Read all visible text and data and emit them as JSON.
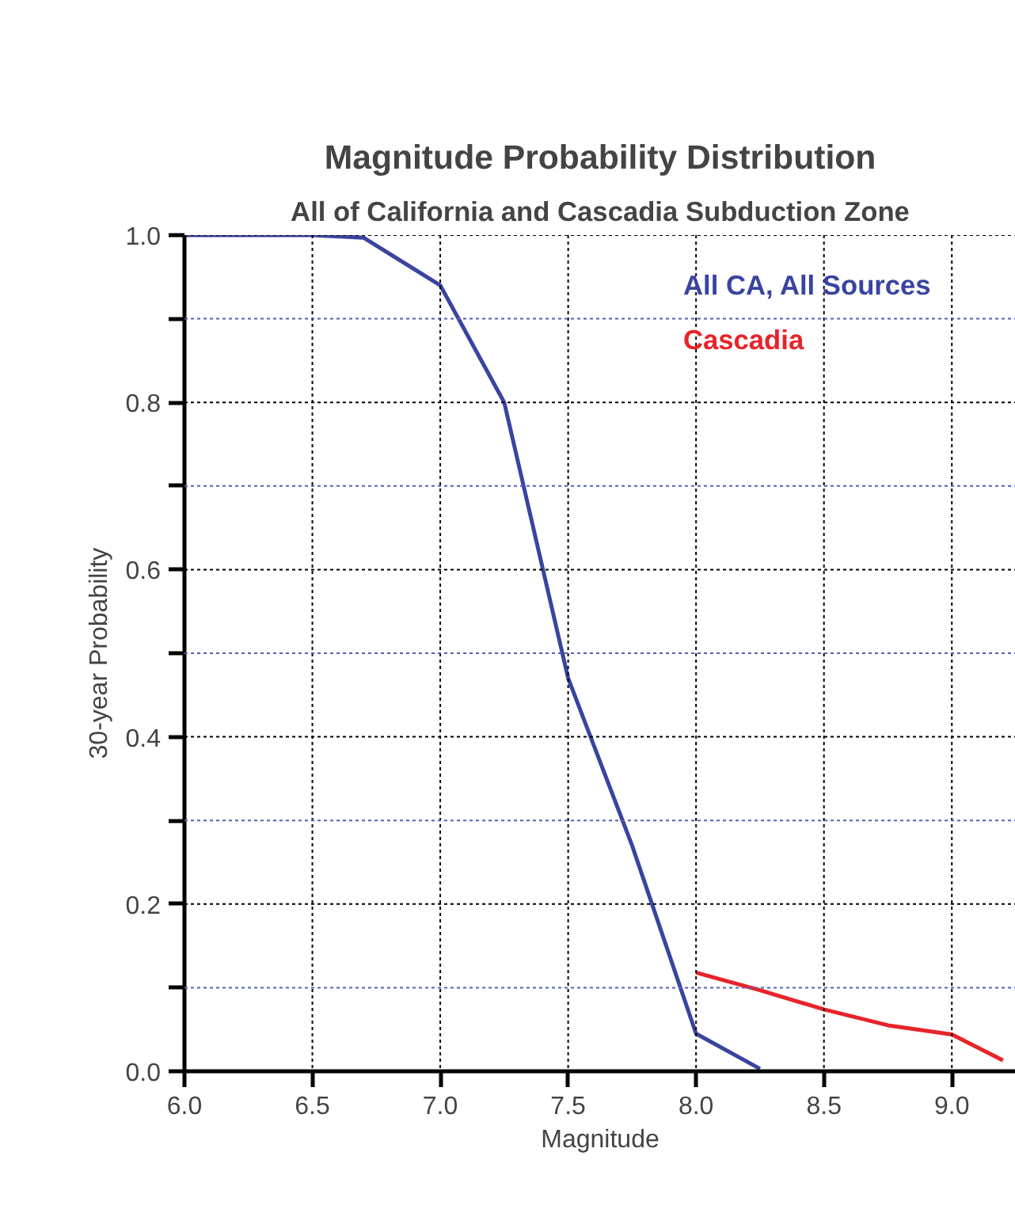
{
  "chart_data": {
    "type": "line",
    "title": "Magnitude Probability Distribution",
    "subtitle": "All of California and Cascadia Subduction Zone",
    "xlabel": "Magnitude",
    "ylabel": "30-year Probability",
    "xlim": [
      6.0,
      9.25
    ],
    "ylim": [
      0.0,
      1.0
    ],
    "xticks": [
      {
        "value": 6.0,
        "label": "6.0"
      },
      {
        "value": 6.5,
        "label": "6.5"
      },
      {
        "value": 7.0,
        "label": "7.0"
      },
      {
        "value": 7.5,
        "label": "7.5"
      },
      {
        "value": 8.0,
        "label": "8.0"
      },
      {
        "value": 8.5,
        "label": "8.5"
      },
      {
        "value": 9.0,
        "label": "9.0"
      }
    ],
    "yticks": [
      {
        "value": 0.0,
        "label": "0.0"
      },
      {
        "value": 0.1,
        "label": null
      },
      {
        "value": 0.2,
        "label": "0.2"
      },
      {
        "value": 0.3,
        "label": null
      },
      {
        "value": 0.4,
        "label": "0.4"
      },
      {
        "value": 0.5,
        "label": null
      },
      {
        "value": 0.6,
        "label": "0.6"
      },
      {
        "value": 0.7,
        "label": null
      },
      {
        "value": 0.8,
        "label": "0.8"
      },
      {
        "value": 0.9,
        "label": null
      },
      {
        "value": 1.0,
        "label": "1.0"
      }
    ],
    "grid": true,
    "legend": "top right",
    "line_style": "solid",
    "marker": "none",
    "series": [
      {
        "name": "All CA, All Sources",
        "color": "#3a44a0",
        "x": [
          6.0,
          6.5,
          6.7,
          7.0,
          7.25,
          7.5,
          7.75,
          8.0,
          8.25
        ],
        "values": [
          1.0,
          1.0,
          0.997,
          0.94,
          0.8,
          0.47,
          0.27,
          0.045,
          0.003
        ]
      },
      {
        "name": "Cascadia",
        "color": "#e8232a",
        "x": [
          8.0,
          8.25,
          8.5,
          8.75,
          9.0,
          9.2
        ],
        "values": [
          0.118,
          0.097,
          0.074,
          0.055,
          0.044,
          0.013
        ]
      }
    ]
  }
}
